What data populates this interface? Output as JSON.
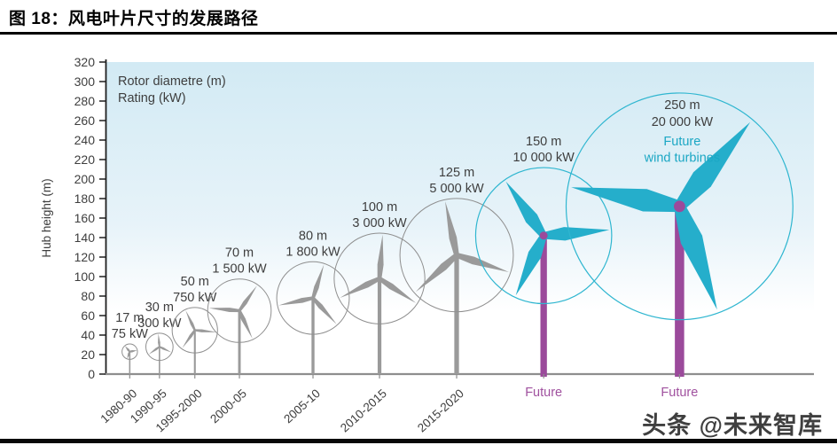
{
  "title": "图 18：风电叶片尺寸的发展路径",
  "watermark": "头条 @未来智库",
  "chart_data": {
    "type": "scatter",
    "description": "Pictorial chart: development path of wind turbine blade/rotor sizes over time; each data point drawn as a 3-blade turbine whose circle diameter equals rotor diameter and hub marks hub height",
    "title": "",
    "xlabel": "",
    "ylabel": "Hub height (m)",
    "ylim": [
      0,
      320
    ],
    "ytick_step": 20,
    "grid": false,
    "legend_lines": [
      "Rotor diametre (m)",
      "Rating (kW)"
    ],
    "legend_position": "top-left",
    "categories": [
      "1980-90",
      "1990-95",
      "1995-2000",
      "2000-05",
      "2005-10",
      "2010-2015",
      "2015-2020",
      "Future",
      "Future"
    ],
    "turbines": [
      {
        "period": "1980-90",
        "rotor_diameter_m": 17,
        "rating_kw": 75,
        "label_lines": [
          "17 m",
          "75 kW"
        ],
        "hub_height_m": 23,
        "style": "past",
        "x_frac": 0.033,
        "blade_angle": -40
      },
      {
        "period": "1990-95",
        "rotor_diameter_m": 30,
        "rating_kw": 300,
        "label_lines": [
          "30 m",
          "300 kW"
        ],
        "hub_height_m": 28,
        "style": "past",
        "x_frac": 0.075,
        "blade_angle": -5
      },
      {
        "period": "1995-2000",
        "rotor_diameter_m": 50,
        "rating_kw": 750,
        "label_lines": [
          "50 m",
          "750 kW"
        ],
        "hub_height_m": 45,
        "style": "past",
        "x_frac": 0.125,
        "blade_angle": -25
      },
      {
        "period": "2000-05",
        "rotor_diameter_m": 70,
        "rating_kw": 1500,
        "label_lines": [
          "70 m",
          "1 500 kW"
        ],
        "hub_height_m": 65,
        "style": "past",
        "x_frac": 0.188,
        "blade_angle": 35
      },
      {
        "period": "2005-10",
        "rotor_diameter_m": 80,
        "rating_kw": 1800,
        "label_lines": [
          "80 m",
          "1 800 kW"
        ],
        "hub_height_m": 78,
        "style": "past",
        "x_frac": 0.292,
        "blade_angle": 18
      },
      {
        "period": "2010-2015",
        "rotor_diameter_m": 100,
        "rating_kw": 3000,
        "label_lines": [
          "100 m",
          "3 000 kW"
        ],
        "hub_height_m": 98,
        "style": "past",
        "x_frac": 0.386,
        "blade_angle": 4
      },
      {
        "period": "2015-2020",
        "rotor_diameter_m": 125,
        "rating_kw": 5000,
        "label_lines": [
          "125 m",
          "5 000 kW"
        ],
        "hub_height_m": 122,
        "style": "past",
        "x_frac": 0.495,
        "blade_angle": -12
      },
      {
        "period": "Future",
        "rotor_diameter_m": 150,
        "rating_kw": 10000,
        "label_lines": [
          "150 m",
          "10 000 kW"
        ],
        "hub_height_m": 142,
        "style": "future",
        "x_frac": 0.618,
        "blade_angle": -35
      },
      {
        "period": "Future",
        "rotor_diameter_m": 250,
        "rating_kw": 20000,
        "label_lines": [
          "250 m",
          "20 000 kW"
        ],
        "sub_label_lines": [
          "Future",
          "wind turbines"
        ],
        "hub_height_m": 172,
        "style": "future",
        "x_frac": 0.81,
        "blade_angle": 40
      }
    ],
    "colors": {
      "plot_bg_top": "#d2eaf4",
      "plot_bg_mid": "#e7f3f9",
      "plot_bg_bottom": "#ffffff",
      "past_turbine": "#9a9a9a",
      "past_outline": "#8f8f8f",
      "future_blade": "#25aecb",
      "future_outline": "#2fb6d0",
      "future_tower": "#9b4a9b",
      "future_text": "#1ba7c4",
      "axis_text": "#3e3e3e",
      "axis_line": "#1f1f1f",
      "baseline": "#8e8e8e",
      "future_axis_label": "#a0519f"
    }
  }
}
